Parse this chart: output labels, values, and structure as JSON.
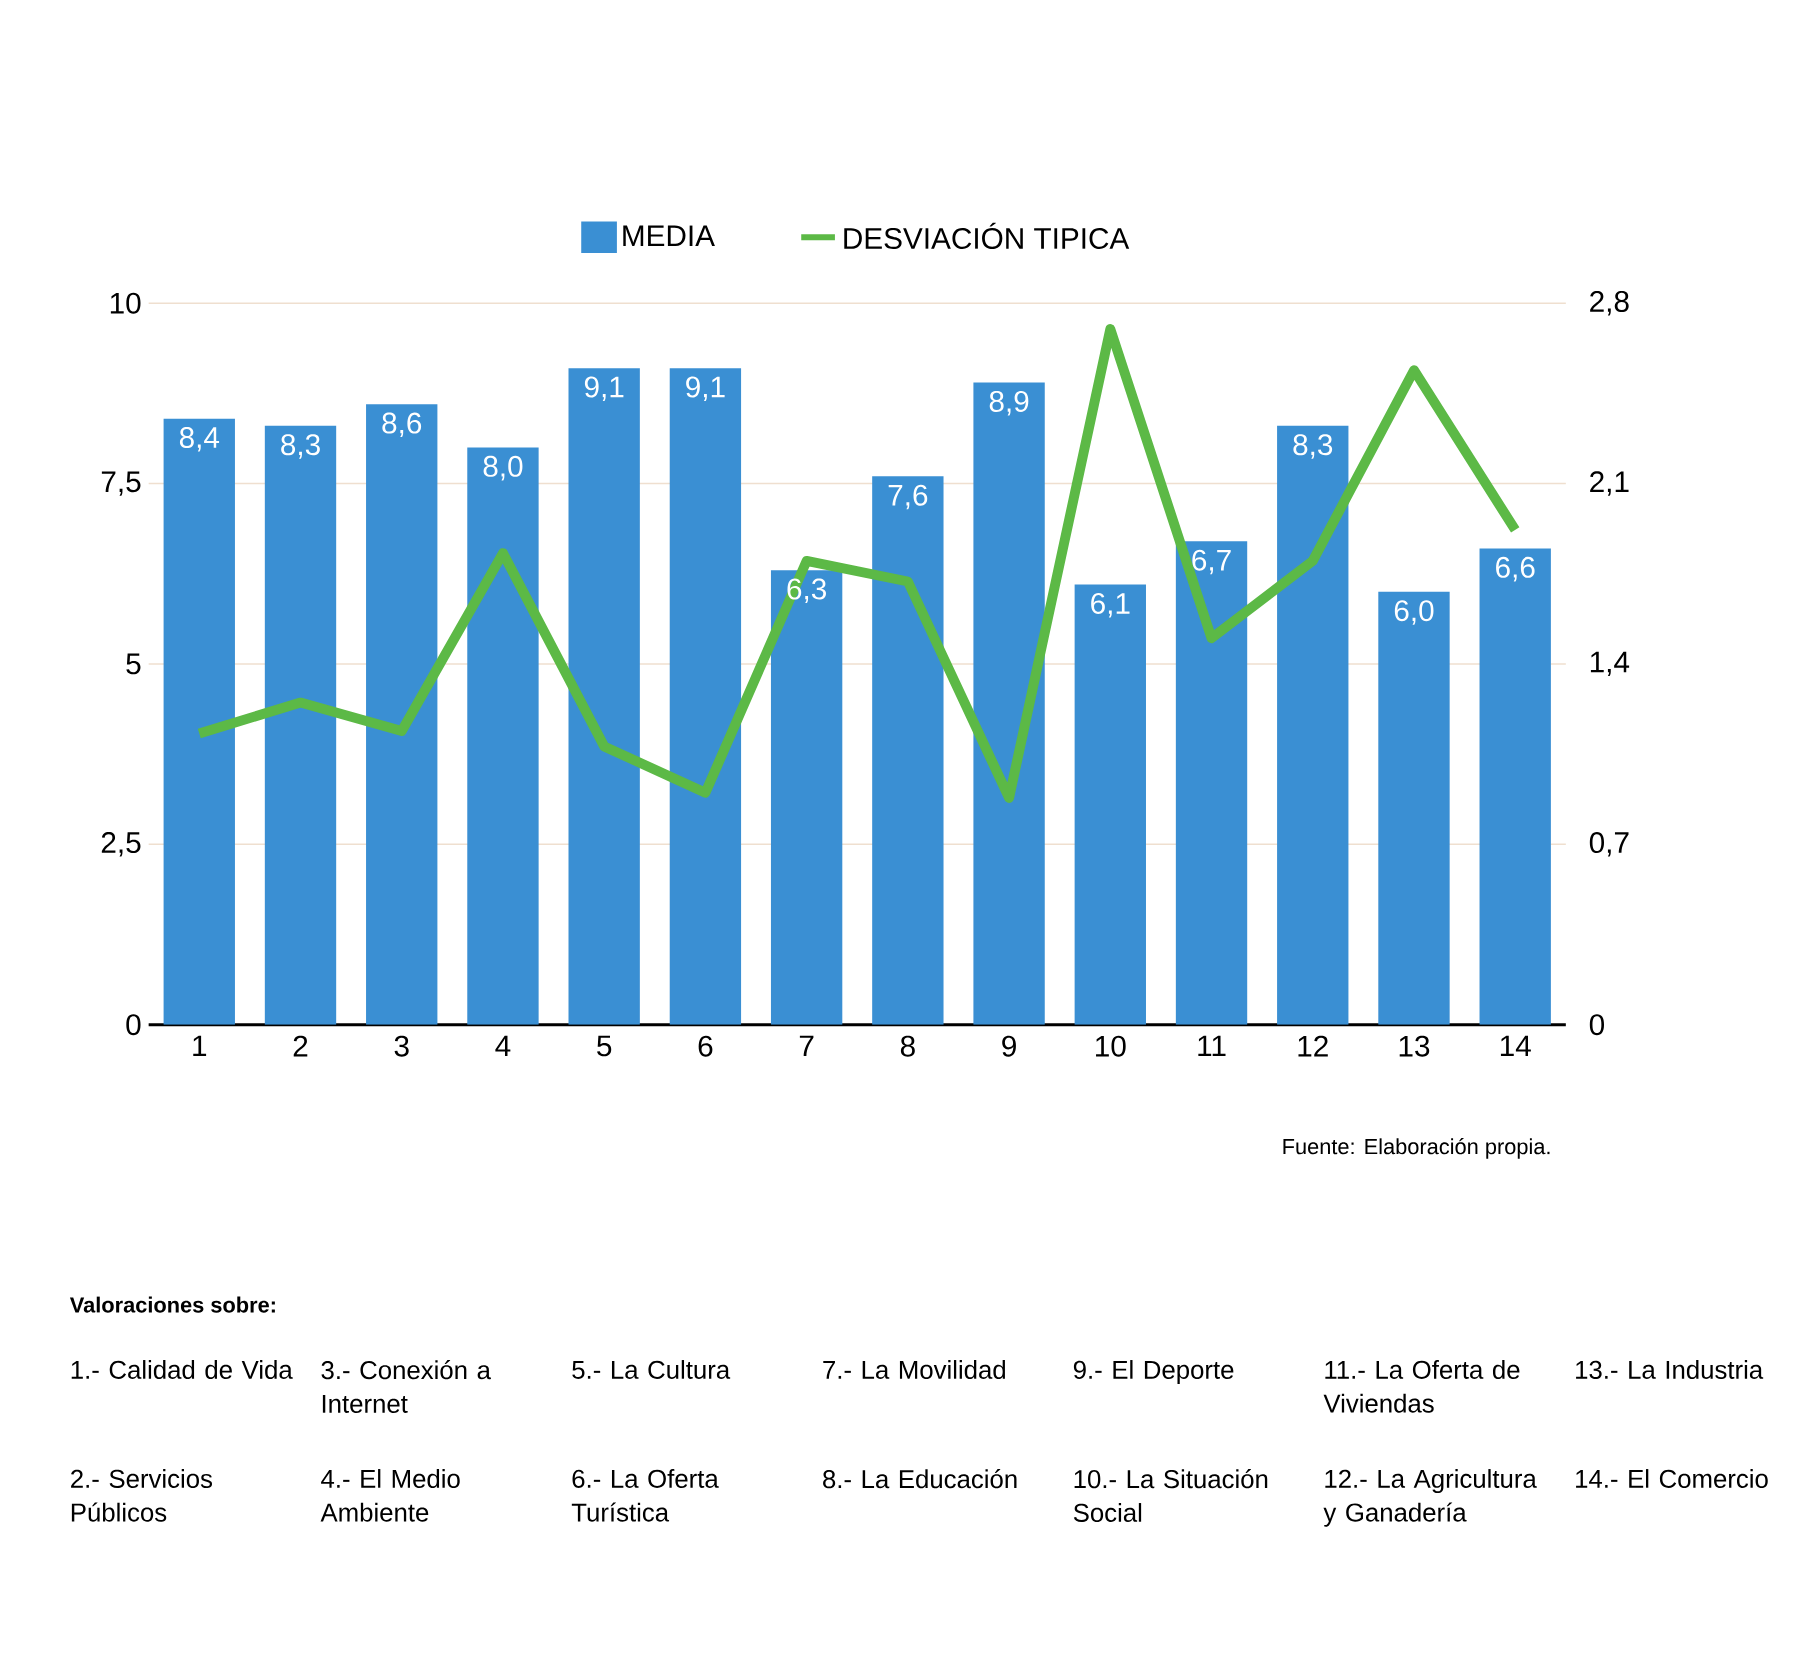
{
  "chart_data": {
    "type": "bar",
    "categories": [
      "1",
      "2",
      "3",
      "4",
      "5",
      "6",
      "7",
      "8",
      "9",
      "10",
      "11",
      "12",
      "13",
      "14"
    ],
    "series": [
      {
        "name": "MEDIA",
        "color": "#3a8fd3",
        "values": [
          8.4,
          8.3,
          8.6,
          8.0,
          9.1,
          9.1,
          6.3,
          7.6,
          8.9,
          6.1,
          6.7,
          8.3,
          6.0,
          6.6
        ],
        "value_labels": [
          "8,4",
          "8,3",
          "8,6",
          "8,0",
          "9,1",
          "9,1",
          "6,3",
          "7,6",
          "8,9",
          "6,1",
          "6,7",
          "8,3",
          "6,0",
          "6,6"
        ]
      },
      {
        "name": "DESVIACIÓN TIPICA",
        "type": "line",
        "axis": "y2",
        "color": "#5cb946",
        "values": [
          1.13,
          1.25,
          1.14,
          1.83,
          1.08,
          0.9,
          1.8,
          1.72,
          0.88,
          2.7,
          1.5,
          1.8,
          2.54,
          1.92
        ]
      }
    ],
    "ylim": [
      0,
      10
    ],
    "yticks": [
      0,
      {
        "value": 2.5,
        "label": "2,5"
      },
      5,
      {
        "value": 7.5,
        "label": "7,5"
      },
      10
    ],
    "y2lim": [
      0,
      2.8
    ],
    "y2ticks": [
      0,
      {
        "value": 0.7,
        "label": "0,7"
      },
      {
        "value": 1.4,
        "label": "1,4"
      },
      {
        "value": 2.1,
        "label": "2,1"
      },
      {
        "value": 2.8,
        "label": "2,8"
      }
    ],
    "grid": "y",
    "legend": "top",
    "marker": "none",
    "line_style": "solid",
    "annotations": [
      "Fuente: Elaboración propia.",
      "Valoraciones sobre:",
      "1.- Calidad de Vida",
      "2.- Servicios Públicos",
      "3.- Conexión a Internet",
      "4.- El Medio Ambiente",
      "5.- La Cultura",
      "6.- La Oferta Turística",
      "7.- La Movilidad",
      "8.- La Educación",
      "9.- El Deporte",
      "10.- La Situación Social",
      "11.- La Oferta de Viviendas",
      "12.- La Agricultura y Ganadería",
      "13.- La Industria",
      "14.- El Comercio"
    ]
  }
}
